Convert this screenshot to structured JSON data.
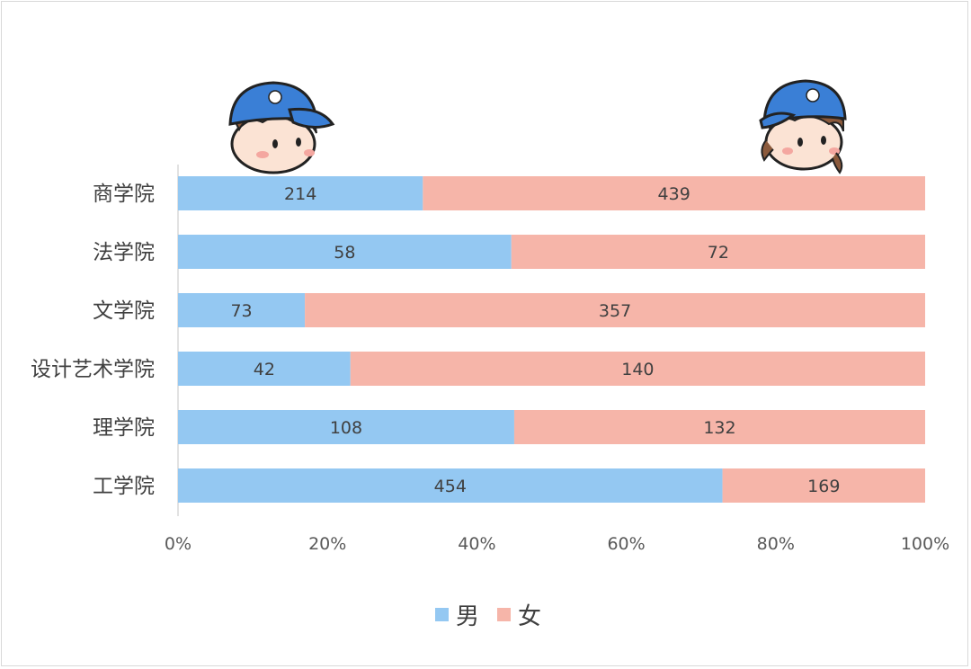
{
  "chart_data": {
    "type": "bar",
    "orientation": "horizontal",
    "stacked": "percent",
    "categories": [
      "商学院",
      "法学院",
      "文学院",
      "设计艺术学院",
      "理学院",
      "工学院"
    ],
    "series": [
      {
        "name": "男",
        "values": [
          214,
          58,
          73,
          42,
          108,
          454
        ]
      },
      {
        "name": "女",
        "values": [
          439,
          72,
          357,
          140,
          132,
          169
        ]
      }
    ],
    "x_ticks": [
      "0%",
      "20%",
      "40%",
      "60%",
      "80%",
      "100%"
    ],
    "xlim": [
      0,
      100
    ],
    "legend_position": "bottom",
    "grid": false
  },
  "colors": {
    "male": "#94c8f2",
    "female": "#f6b5a9",
    "axis": "#d9d9d9",
    "text": "#404040"
  },
  "decorations": {
    "left_figure": "boy-cap-icon",
    "right_figure": "girl-cap-icon"
  }
}
